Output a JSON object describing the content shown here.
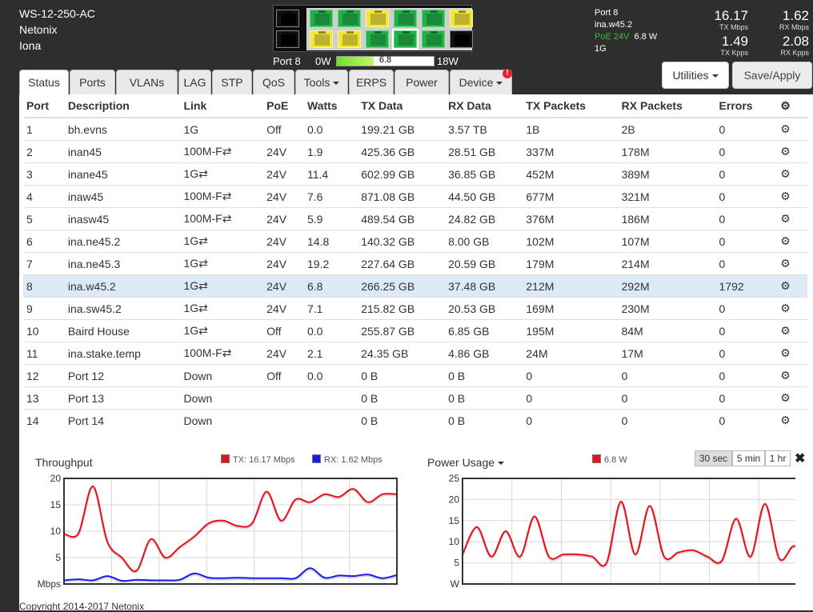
{
  "device": {
    "model": "WS-12-250-AC",
    "brand": "Netonix",
    "name": "Iona"
  },
  "port_panel": {
    "top_row": [
      "black",
      "green",
      "green",
      "yellow",
      "green",
      "green",
      "yellow"
    ],
    "bottom_row": [
      "black",
      "yellow",
      "yellow",
      "green",
      "green",
      "green",
      "black"
    ],
    "selected_port": 8
  },
  "power_meter": {
    "port_label": "Port 8",
    "min_label": "0W",
    "value_label": "6.8",
    "max_label": "18W",
    "level_fraction": 0.378
  },
  "selected_port_info": {
    "label": "Port 8",
    "description": "ina.w45.2",
    "poe": "PoE 24V",
    "watts": "6.8 W",
    "link": "1G"
  },
  "stats": [
    {
      "value": "16.17",
      "label": "TX Mbps"
    },
    {
      "value": "1.62",
      "label": "RX Mbps"
    },
    {
      "value": "1.49",
      "label": "TX Kpps"
    },
    {
      "value": "2.08",
      "label": "RX Kpps"
    }
  ],
  "buttons": {
    "utilities": "Utilities",
    "save_apply": "Save/Apply"
  },
  "tabs": [
    {
      "label": "Status",
      "active": true
    },
    {
      "label": "Ports"
    },
    {
      "label": "VLANs"
    },
    {
      "label": "LAG"
    },
    {
      "label": "STP"
    },
    {
      "label": "QoS"
    },
    {
      "label": "Tools",
      "dropdown": true
    },
    {
      "label": "ERPS"
    },
    {
      "label": "Power"
    },
    {
      "label": "Device",
      "dropdown": true
    }
  ],
  "device_alert": "!",
  "table": {
    "headers": [
      "Port",
      "Description",
      "Link",
      "PoE",
      "Watts",
      "TX Data",
      "RX Data",
      "TX Packets",
      "RX Packets",
      "Errors"
    ],
    "rows": [
      [
        "1",
        "bh.evns",
        "1G",
        "Off",
        "0.0",
        "199.21 GB",
        "3.57 TB",
        "1B",
        "2B",
        "0"
      ],
      [
        "2",
        "inan45",
        "100M-F⇄",
        "24V",
        "1.9",
        "425.36 GB",
        "28.51 GB",
        "337M",
        "178M",
        "0"
      ],
      [
        "3",
        "inane45",
        "1G⇄",
        "24V",
        "11.4",
        "602.99 GB",
        "36.85 GB",
        "452M",
        "389M",
        "0"
      ],
      [
        "4",
        "inaw45",
        "100M-F⇄",
        "24V",
        "7.6",
        "871.08 GB",
        "44.50 GB",
        "677M",
        "321M",
        "0"
      ],
      [
        "5",
        "inasw45",
        "100M-F⇄",
        "24V",
        "5.9",
        "489.54 GB",
        "24.82 GB",
        "376M",
        "186M",
        "0"
      ],
      [
        "6",
        "ina.ne45.2",
        "1G⇄",
        "24V",
        "14.8",
        "140.32 GB",
        "8.00 GB",
        "102M",
        "107M",
        "0"
      ],
      [
        "7",
        "ina.ne45.3",
        "1G⇄",
        "24V",
        "19.2",
        "227.64 GB",
        "20.59 GB",
        "179M",
        "214M",
        "0"
      ],
      [
        "8",
        "ina.w45.2",
        "1G⇄",
        "24V",
        "6.8",
        "266.25 GB",
        "37.48 GB",
        "212M",
        "292M",
        "1792"
      ],
      [
        "9",
        "ina.sw45.2",
        "1G⇄",
        "24V",
        "7.1",
        "215.82 GB",
        "20.53 GB",
        "169M",
        "230M",
        "0"
      ],
      [
        "10",
        "Baird House",
        "1G⇄",
        "Off",
        "0.0",
        "255.87 GB",
        "6.85 GB",
        "195M",
        "84M",
        "0"
      ],
      [
        "11",
        "ina.stake.temp",
        "100M-F⇄",
        "24V",
        "2.1",
        "24.35 GB",
        "4.86 GB",
        "24M",
        "17M",
        "0"
      ],
      [
        "12",
        "Port 12",
        "Down",
        "Off",
        "0.0",
        "0 B",
        "0 B",
        "0",
        "0",
        "0"
      ],
      [
        "13",
        "Port 13",
        "Down",
        "",
        "",
        "0 B",
        "0 B",
        "0",
        "0",
        "0"
      ],
      [
        "14",
        "Port 14",
        "Down",
        "",
        "",
        "0 B",
        "0 B",
        "0",
        "0",
        "0"
      ]
    ],
    "selected_row": 8
  },
  "range_buttons": [
    {
      "label": "30 sec",
      "active": true
    },
    {
      "label": "5 min"
    },
    {
      "label": "1 hr"
    }
  ],
  "footer": "Copyright 2014-2017 Netonix",
  "chart_data": [
    {
      "type": "line",
      "title": "Throughput",
      "ylabel": "Mbps",
      "ylim": [
        0,
        20
      ],
      "yticks": [
        5,
        10,
        15,
        20
      ],
      "grid": true,
      "legend_position": "top",
      "series": [
        {
          "name": "TX: 16.17 Mbps",
          "color": "#e8101a",
          "values": [
            9.5,
            9.6,
            18.5,
            8,
            5,
            2.5,
            8.5,
            5,
            7,
            9,
            11.5,
            12,
            11,
            11.5,
            17.5,
            12,
            16,
            15.5,
            17,
            16.5,
            18,
            15.5,
            17,
            17
          ]
        },
        {
          "name": "RX: 1.62 Mbps",
          "color": "#1a1aee",
          "values": [
            0.7,
            0.9,
            0.7,
            1.5,
            0.6,
            0.8,
            0.7,
            0.7,
            0.8,
            2.0,
            1.2,
            1.1,
            1.2,
            1.1,
            1.1,
            1.1,
            1.1,
            3.0,
            1.2,
            1.6,
            1.5,
            1.8,
            1.1,
            1.7
          ]
        }
      ]
    },
    {
      "type": "line",
      "title": "Power Usage",
      "ylabel": "W",
      "ylim": [
        0,
        25
      ],
      "yticks": [
        5,
        10,
        15,
        20,
        25
      ],
      "grid": true,
      "legend_position": "top",
      "series": [
        {
          "name": "6.8 W",
          "color": "#e8101a",
          "values": [
            7,
            13.5,
            6.5,
            12.5,
            6.5,
            16,
            6.5,
            7,
            7,
            6.5,
            5,
            19.5,
            7,
            18.5,
            6.5,
            7.5,
            8,
            6.5,
            5.5,
            15.5,
            6.5,
            19,
            6,
            9,
            6.5
          ]
        }
      ]
    }
  ]
}
